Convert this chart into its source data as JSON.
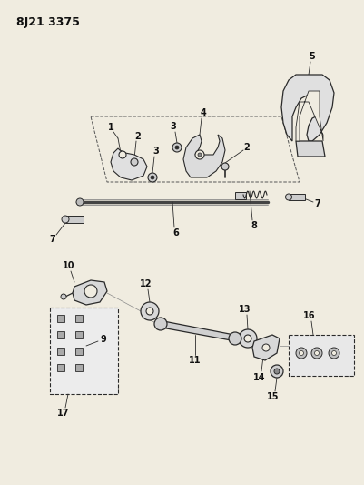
{
  "title": "8J21 3375",
  "bg": "#f0ece0",
  "lc": "#2a2a2a",
  "fig_w": 4.02,
  "fig_h": 5.33,
  "dpi": 100
}
